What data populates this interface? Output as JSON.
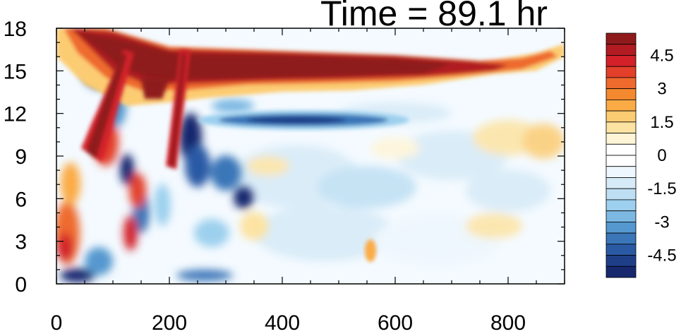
{
  "chart_data": {
    "type": "heatmap",
    "title": "Time = 89.1 hr",
    "xlabel": "",
    "ylabel": "",
    "xlim": [
      0,
      900
    ],
    "ylim": [
      0,
      18
    ],
    "x_ticks": [
      0,
      200,
      400,
      600,
      800
    ],
    "y_ticks": [
      0,
      3,
      6,
      9,
      12,
      15,
      18
    ],
    "x_tick_labels": [
      "0",
      "200",
      "400",
      "600",
      "800"
    ],
    "y_tick_labels": [
      "0",
      "3",
      "6",
      "9",
      "12",
      "15",
      "18"
    ],
    "colorbar": {
      "levels": [
        -5.5,
        -5,
        -4.5,
        -4,
        -3.5,
        -3,
        -2.5,
        -2,
        -1.5,
        -1,
        -0.5,
        0,
        0.5,
        1,
        1.5,
        2,
        2.5,
        3,
        3.5,
        4,
        4.5,
        5,
        5.5
      ],
      "labels": [
        "4.5",
        "3",
        "1.5",
        "0",
        "-1.5",
        "-3",
        "-4.5"
      ],
      "label_values": [
        4.5,
        3,
        1.5,
        0,
        -1.5,
        -3,
        -4.5
      ],
      "colors_top_to_bottom": [
        "#8f1a1c",
        "#b11b21",
        "#d3212a",
        "#e33f2a",
        "#ee6a2d",
        "#f5892f",
        "#fbab45",
        "#fccc72",
        "#fde3a2",
        "#fff5d6",
        "#ffffff",
        "#ffffff",
        "#eef7fd",
        "#d6eaf7",
        "#bedff3",
        "#9dd0ee",
        "#7db8e3",
        "#5498cf",
        "#3a76b8",
        "#2b5aa5",
        "#1f3f89",
        "#17286e"
      ]
    },
    "features": [
      {
        "name": "upper-warm-band",
        "x": [
          80,
          800
        ],
        "y": [
          13.5,
          17.5
        ],
        "value": 5.5
      },
      {
        "name": "blue-band-below",
        "x": [
          230,
          560
        ],
        "y": [
          11.5,
          12.8
        ],
        "value": -3.5
      },
      {
        "name": "oblique-warm-stripe-1",
        "x": [
          100,
          180
        ],
        "y": [
          8,
          17
        ],
        "value": 5
      },
      {
        "name": "oblique-warm-stripe-2",
        "x": [
          200,
          260
        ],
        "y": [
          8,
          16
        ],
        "value": 5
      },
      {
        "name": "left-edge-warm",
        "x": [
          80,
          110
        ],
        "y": [
          1,
          9
        ],
        "value": 3.5
      },
      {
        "name": "column-blue-regions",
        "x": [
          100,
          360
        ],
        "y": [
          0,
          12
        ],
        "value": -4
      }
    ]
  }
}
